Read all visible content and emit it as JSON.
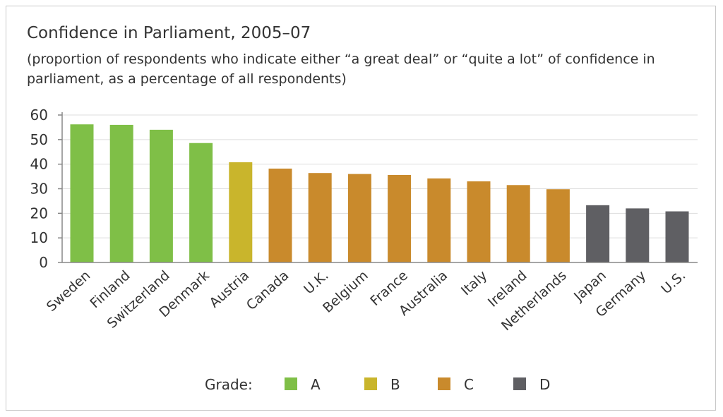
{
  "chart_data": {
    "type": "bar",
    "title": "Confidence in Parliament, 2005–07",
    "subtitle": "(proportion of respondents who indicate either “a great deal” or “quite a lot” of confidence in parliament, as a percentage of all respondents)",
    "xlabel": "",
    "ylabel": "",
    "ylim": [
      0,
      60
    ],
    "yticks": [
      0,
      10,
      20,
      30,
      40,
      50,
      60
    ],
    "grid": true,
    "categories": [
      "Sweden",
      "Finland",
      "Switzerland",
      "Denmark",
      "Austria",
      "Canada",
      "U.K.",
      "Belgium",
      "France",
      "Australia",
      "Italy",
      "Ireland",
      "Netherlands",
      "Japan",
      "Germany",
      "U.S."
    ],
    "values": [
      56.2,
      56.0,
      54.0,
      48.6,
      40.8,
      38.2,
      36.4,
      36.0,
      35.6,
      34.2,
      33.0,
      31.5,
      29.8,
      23.3,
      22.0,
      20.8
    ],
    "grades": [
      "A",
      "A",
      "A",
      "A",
      "B",
      "C",
      "C",
      "C",
      "C",
      "C",
      "C",
      "C",
      "C",
      "D",
      "D",
      "D"
    ],
    "legend": {
      "title": "Grade:",
      "position": "bottom",
      "entries": [
        {
          "label": "A",
          "color": "#7fbf47"
        },
        {
          "label": "B",
          "color": "#c9b52c"
        },
        {
          "label": "C",
          "color": "#c98a2c"
        },
        {
          "label": "D",
          "color": "#5f5f63"
        }
      ]
    },
    "colors": {
      "grid": "#dddddd",
      "axis": "#888888",
      "text": "#333333"
    }
  }
}
